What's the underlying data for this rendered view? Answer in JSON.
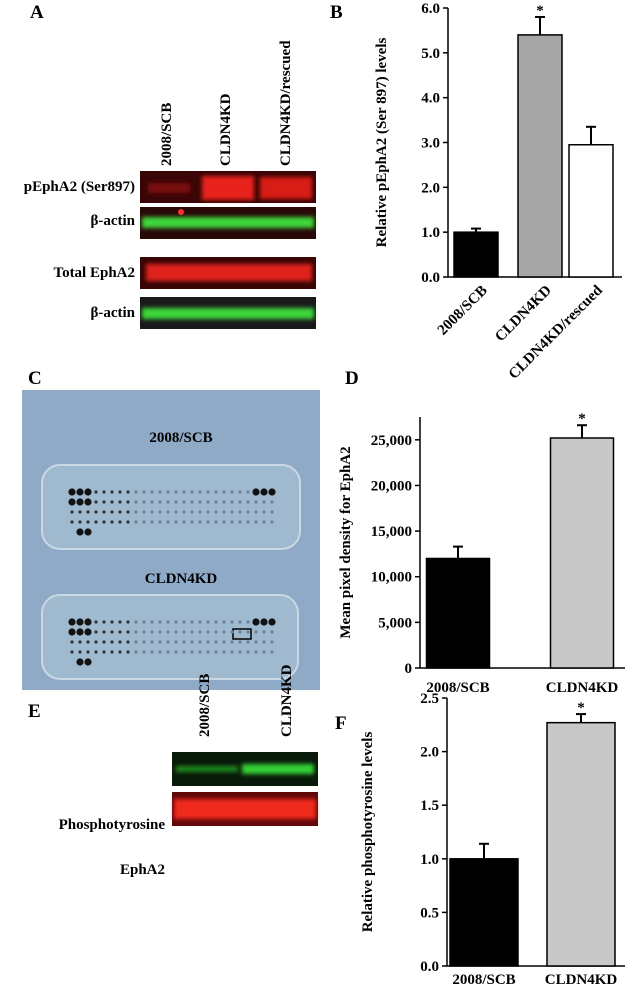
{
  "panels": {
    "A": {
      "label": "A",
      "lanes": [
        "2008/SCB",
        "CLDN4KD",
        "CLDN4KD/rescued"
      ],
      "rows": [
        "pEphA2 (Ser897)",
        "β-actin",
        "Total EphA2",
        "β-actin"
      ]
    },
    "B": {
      "label": "B"
    },
    "C": {
      "label": "C",
      "arrays": [
        "2008/SCB",
        "CLDN4KD"
      ]
    },
    "D": {
      "label": "D"
    },
    "E": {
      "label": "E",
      "lanes": [
        "2008/SCB",
        "CLDN4KD"
      ],
      "rows": [
        "Phosphotyrosine",
        "EphA2"
      ]
    },
    "F": {
      "label": "F"
    }
  },
  "chart_data": [
    {
      "type": "bar",
      "ylabel": "Relative pEphA2 (Ser 897) levels",
      "categories": [
        "2008/SCB",
        "CLDN4KD",
        "CLDN4KD/rescued"
      ],
      "values": [
        1.0,
        5.4,
        2.95
      ],
      "errors": [
        0.08,
        0.4,
        0.4
      ],
      "colors": [
        "#000000",
        "#a6a6a6",
        "#ffffff"
      ],
      "annotations": [
        {
          "text": "*",
          "category": "CLDN4KD"
        }
      ],
      "ylim": [
        0,
        6
      ],
      "yticks": [
        {
          "value": 0,
          "label": "0.0"
        },
        {
          "value": 1,
          "label": "1.0"
        },
        {
          "value": 2,
          "label": "2.0"
        },
        {
          "value": 3,
          "label": "3.0"
        },
        {
          "value": 4,
          "label": "4.0"
        },
        {
          "value": 5,
          "label": "5.0"
        },
        {
          "value": 6,
          "label": "6.0"
        }
      ]
    },
    {
      "type": "bar",
      "ylabel": "Mean pixel density for EphA2",
      "categories": [
        "2008/SCB",
        "CLDN4KD"
      ],
      "values": [
        12000,
        25200
      ],
      "errors": [
        1300,
        1400
      ],
      "colors": [
        "#000000",
        "#c8c8c8"
      ],
      "annotations": [
        {
          "text": "*",
          "category": "CLDN4KD"
        }
      ],
      "ylim": [
        0,
        27500
      ],
      "yticks": [
        0,
        {
          "value": 5000,
          "label": "5,000"
        },
        {
          "value": 10000,
          "label": "10,000"
        },
        {
          "value": 15000,
          "label": "15,000"
        },
        {
          "value": 20000,
          "label": "20,000"
        },
        {
          "value": 25000,
          "label": "25,000"
        }
      ]
    },
    {
      "type": "bar",
      "ylabel": "Relative phosphotyrosine levels",
      "categories": [
        "2008/SCB",
        "CLDN4KD"
      ],
      "values": [
        1.0,
        2.27
      ],
      "errors": [
        0.14,
        0.08
      ],
      "colors": [
        "#000000",
        "#c8c8c8"
      ],
      "annotations": [
        {
          "text": "*",
          "category": "CLDN4KD"
        }
      ],
      "ylim": [
        0,
        2.5
      ],
      "yticks": [
        {
          "value": 0,
          "label": "0.0"
        },
        {
          "value": 0.5,
          "label": "0.5"
        },
        {
          "value": 1,
          "label": "1.0"
        },
        {
          "value": 1.5,
          "label": "1.5"
        },
        {
          "value": 2,
          "label": "2.0"
        },
        {
          "value": 2.5,
          "label": "2.5"
        }
      ]
    }
  ]
}
